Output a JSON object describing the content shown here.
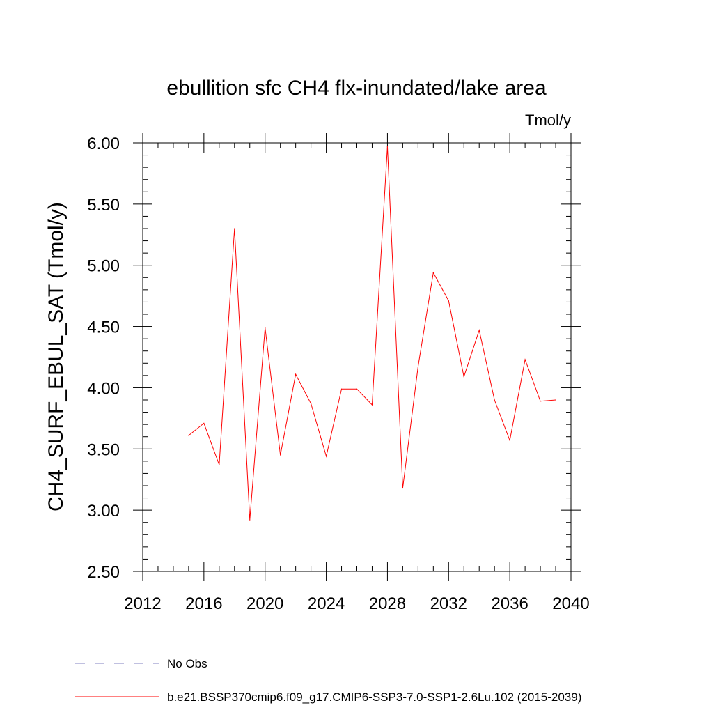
{
  "chart_data": {
    "type": "line",
    "title": "ebullition sfc CH4 flx-inundated/lake area",
    "units_label": "Tmol/y",
    "ylabel": "CH4_SURF_EBUL_SAT  (Tmol/y)",
    "xlabel": "",
    "xlim": [
      2012,
      2040
    ],
    "ylim": [
      2.5,
      6.0
    ],
    "x_ticks": [
      2012,
      2016,
      2020,
      2024,
      2028,
      2032,
      2036,
      2040
    ],
    "x_tick_labels": [
      "2012",
      "2016",
      "2020",
      "2024",
      "2028",
      "2032",
      "2036",
      "2040"
    ],
    "y_ticks": [
      2.5,
      3.0,
      3.5,
      4.0,
      4.5,
      5.0,
      5.5,
      6.0
    ],
    "y_tick_labels": [
      "2.50",
      "3.00",
      "3.50",
      "4.00",
      "4.50",
      "5.00",
      "5.50",
      "6.00"
    ],
    "grid": false,
    "legend_position": "bottom",
    "series": [
      {
        "name": "No Obs",
        "color": "#8080c0",
        "dashed": true,
        "x": [],
        "y": []
      },
      {
        "name": "b.e21.BSSP370cmip6.f09_g17.CMIP6-SSP3-7.0-SSP1-2.6Lu.102 (2015-2039)",
        "color": "#ff0000",
        "dashed": false,
        "x": [
          2015,
          2016,
          2017,
          2018,
          2019,
          2020,
          2021,
          2022,
          2023,
          2024,
          2025,
          2026,
          2027,
          2028,
          2029,
          2030,
          2031,
          2032,
          2033,
          2034,
          2035,
          2036,
          2037,
          2038,
          2039
        ],
        "y": [
          3.61,
          3.71,
          3.37,
          5.3,
          2.92,
          4.49,
          3.45,
          4.11,
          3.87,
          3.44,
          3.99,
          3.99,
          3.86,
          5.97,
          3.18,
          4.17,
          4.94,
          4.71,
          4.09,
          4.47,
          3.9,
          3.57,
          4.23,
          3.89,
          3.9
        ]
      }
    ]
  }
}
